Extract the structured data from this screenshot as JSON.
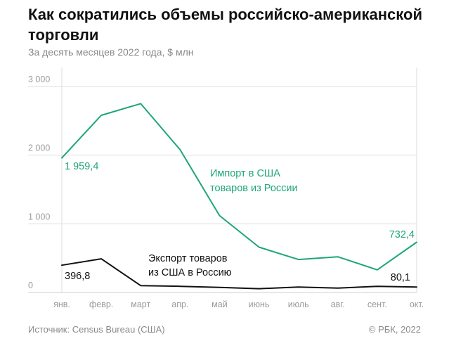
{
  "title": "Как сократились объемы российско-американской торговли",
  "subtitle": "За десять месяцев 2022 года, $ млн",
  "source": "Источник: Census Bureau (США)",
  "copyright": "© РБК, 2022",
  "colors": {
    "import": "#1ea57b",
    "export": "#111111",
    "grid": "#dddddd",
    "axis": "#9a9a9a"
  },
  "chart_data": {
    "type": "line",
    "title": "Как сократились объемы российско-американской торговли",
    "subtitle": "За десять месяцев 2022 года, $ млн",
    "categories": [
      "янв.",
      "февр.",
      "март",
      "апр.",
      "май",
      "июнь",
      "июль",
      "авг.",
      "сент.",
      "окт."
    ],
    "ylim": [
      0,
      3000
    ],
    "yticks": [
      0,
      1000,
      2000,
      3000
    ],
    "ytick_labels": [
      "0",
      "1 000",
      "2 000",
      "3 000"
    ],
    "grid": true,
    "series": [
      {
        "name": "Импорт в США товаров из России",
        "name_lines": [
          "Импорт в США",
          "товаров из России"
        ],
        "color": "#1ea57b",
        "values": [
          1959.4,
          2580,
          2750,
          2080,
          1120,
          660,
          480,
          520,
          330,
          732.4
        ],
        "start_label": "1 959,4",
        "end_label": "732,4"
      },
      {
        "name": "Экспорт товаров из США в Россию",
        "name_lines": [
          "Экспорт товаров",
          "из США в Россию"
        ],
        "color": "#111111",
        "values": [
          396.8,
          490,
          100,
          90,
          75,
          55,
          80,
          65,
          90,
          80.1
        ],
        "start_label": "396,8",
        "end_label": "80,1"
      }
    ]
  }
}
